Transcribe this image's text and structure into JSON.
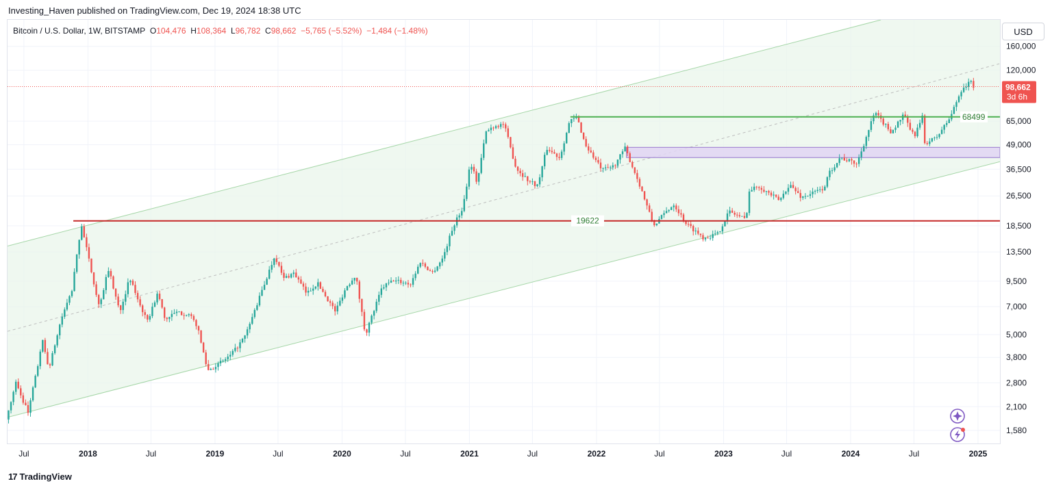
{
  "header": {
    "publisher": "Investing_Haven published on TradingView.com, Dec 19, 2024 18:38 UTC"
  },
  "legend": {
    "symbol": "Bitcoin / U.S. Dollar, 1W, BITSTAMP",
    "open_label": "O",
    "open": "104,476",
    "high_label": "H",
    "high": "108,364",
    "low_label": "L",
    "low": "96,782",
    "close_label": "C",
    "close": "98,662",
    "change": "−5,765 (−5.52%)",
    "change2": "−1,484 (−1.48%)"
  },
  "currency": "USD",
  "footer": {
    "brand": "TradingView",
    "brand_glyph": "17"
  },
  "colors": {
    "up": "#26a69a",
    "down": "#ef5350",
    "channel": "#a5d6a7",
    "support_red": "#c62828",
    "resistance_green": "#4caf50",
    "zone": "#d1c4e9"
  },
  "icons": [
    "sparkle-icon",
    "lightning-icon"
  ],
  "chart_data": {
    "type": "candlestick",
    "symbol": "BTCUSD",
    "interval": "1W",
    "y_scale": "log",
    "ylim": [
      1350,
      220000
    ],
    "xlim": [
      "2017-05-15",
      "2025-03-05"
    ],
    "y_ticks": [
      "160,000",
      "120,000",
      "65,000",
      "49,000",
      "36,500",
      "26,500",
      "18,500",
      "13,500",
      "9,500",
      "7,000",
      "5,000",
      "3,800",
      "2,800",
      "2,100",
      "1,580"
    ],
    "y_tick_values": [
      160000,
      120000,
      65000,
      49000,
      36500,
      26500,
      18500,
      13500,
      9500,
      7000,
      5000,
      3800,
      2800,
      2100,
      1580
    ],
    "x_ticks": [
      {
        "label": "Jul",
        "date": "2017-07-01",
        "year": false
      },
      {
        "label": "2018",
        "date": "2018-01-01",
        "year": true
      },
      {
        "label": "Jul",
        "date": "2018-07-01",
        "year": false
      },
      {
        "label": "2019",
        "date": "2019-01-01",
        "year": true
      },
      {
        "label": "Jul",
        "date": "2019-07-01",
        "year": false
      },
      {
        "label": "2020",
        "date": "2020-01-01",
        "year": true
      },
      {
        "label": "Jul",
        "date": "2020-07-01",
        "year": false
      },
      {
        "label": "2021",
        "date": "2021-01-01",
        "year": true
      },
      {
        "label": "Jul",
        "date": "2021-07-01",
        "year": false
      },
      {
        "label": "2022",
        "date": "2022-01-01",
        "year": true
      },
      {
        "label": "Jul",
        "date": "2022-07-01",
        "year": false
      },
      {
        "label": "2023",
        "date": "2023-01-01",
        "year": true
      },
      {
        "label": "Jul",
        "date": "2023-07-01",
        "year": false
      },
      {
        "label": "2024",
        "date": "2024-01-01",
        "year": true
      },
      {
        "label": "Jul",
        "date": "2024-07-01",
        "year": false
      },
      {
        "label": "2025",
        "date": "2025-01-01",
        "year": true
      }
    ],
    "price_path": [
      [
        "2017-05-15",
        1800
      ],
      [
        "2017-06-12",
        2800
      ],
      [
        "2017-07-17",
        1950
      ],
      [
        "2017-08-28",
        4600
      ],
      [
        "2017-09-15",
        3300
      ],
      [
        "2017-10-20",
        6000
      ],
      [
        "2017-11-20",
        8500
      ],
      [
        "2017-12-17",
        19000
      ],
      [
        "2018-01-01",
        14000
      ],
      [
        "2018-02-06",
        7000
      ],
      [
        "2018-03-05",
        11000
      ],
      [
        "2018-04-06",
        6600
      ],
      [
        "2018-05-05",
        9800
      ],
      [
        "2018-06-24",
        5800
      ],
      [
        "2018-07-25",
        8300
      ],
      [
        "2018-08-14",
        6000
      ],
      [
        "2018-09-15",
        6500
      ],
      [
        "2018-10-20",
        6400
      ],
      [
        "2018-11-14",
        5600
      ],
      [
        "2018-12-15",
        3250
      ],
      [
        "2019-01-15",
        3500
      ],
      [
        "2019-02-20",
        3900
      ],
      [
        "2019-04-02",
        4900
      ],
      [
        "2019-05-15",
        8000
      ],
      [
        "2019-06-26",
        13000
      ],
      [
        "2019-07-20",
        9800
      ],
      [
        "2019-08-20",
        10500
      ],
      [
        "2019-09-25",
        8200
      ],
      [
        "2019-10-26",
        9300
      ],
      [
        "2019-12-17",
        6600
      ],
      [
        "2020-01-15",
        8700
      ],
      [
        "2020-02-13",
        10300
      ],
      [
        "2020-03-12",
        5000
      ],
      [
        "2020-04-29",
        8800
      ],
      [
        "2020-06-01",
        9600
      ],
      [
        "2020-07-20",
        9200
      ],
      [
        "2020-08-17",
        12000
      ],
      [
        "2020-09-20",
        10500
      ],
      [
        "2020-10-20",
        12500
      ],
      [
        "2020-11-20",
        18500
      ],
      [
        "2020-12-17",
        23000
      ],
      [
        "2021-01-08",
        40000
      ],
      [
        "2021-01-27",
        31000
      ],
      [
        "2021-02-21",
        57000
      ],
      [
        "2021-03-13",
        61000
      ],
      [
        "2021-04-14",
        63000
      ],
      [
        "2021-05-19",
        37000
      ],
      [
        "2021-06-22",
        32000
      ],
      [
        "2021-07-20",
        30000
      ],
      [
        "2021-08-15",
        47000
      ],
      [
        "2021-09-21",
        42000
      ],
      [
        "2021-10-20",
        65000
      ],
      [
        "2021-11-10",
        68000
      ],
      [
        "2021-12-04",
        49000
      ],
      [
        "2022-01-22",
        36000
      ],
      [
        "2022-02-24",
        38000
      ],
      [
        "2022-03-28",
        47000
      ],
      [
        "2022-05-10",
        30000
      ],
      [
        "2022-06-18",
        18500
      ],
      [
        "2022-07-25",
        22000
      ],
      [
        "2022-08-15",
        24000
      ],
      [
        "2022-09-20",
        19000
      ],
      [
        "2022-11-09",
        16000
      ],
      [
        "2022-12-20",
        16800
      ],
      [
        "2023-01-20",
        22000
      ],
      [
        "2023-03-10",
        20000
      ],
      [
        "2023-03-20",
        28000
      ],
      [
        "2023-04-14",
        30000
      ],
      [
        "2023-06-15",
        25000
      ],
      [
        "2023-07-13",
        30500
      ],
      [
        "2023-08-17",
        26000
      ],
      [
        "2023-10-20",
        29000
      ],
      [
        "2023-11-05",
        35000
      ],
      [
        "2023-12-05",
        42000
      ],
      [
        "2024-01-23",
        39000
      ],
      [
        "2024-02-28",
        60000
      ],
      [
        "2024-03-14",
        72000
      ],
      [
        "2024-05-01",
        57000
      ],
      [
        "2024-06-05",
        70000
      ],
      [
        "2024-07-05",
        54000
      ],
      [
        "2024-07-29",
        68000
      ],
      [
        "2024-08-05",
        50000
      ],
      [
        "2024-09-06",
        53000
      ],
      [
        "2024-10-15",
        67000
      ],
      [
        "2024-11-11",
        88000
      ],
      [
        "2024-11-22",
        98000
      ],
      [
        "2024-12-05",
        100000
      ],
      [
        "2024-12-16",
        106000
      ],
      [
        "2024-12-19",
        98662
      ]
    ],
    "current_price": {
      "label": "98,662",
      "sublabel": "3d 6h",
      "value": 98662
    },
    "levels": [
      {
        "name": "resistance",
        "label": "68499",
        "value": 68499,
        "from": "2021-10-18",
        "to": "2025-03-05",
        "color": "#4caf50"
      },
      {
        "name": "support",
        "label": "19622",
        "value": 19622,
        "from": "2017-11-20",
        "to": "2025-03-05",
        "color": "#c62828"
      }
    ],
    "zone": {
      "low": 42000,
      "high": 47500,
      "from": "2022-03-28",
      "to": "2025-03-05"
    },
    "channel": {
      "upper": [
        [
          "2017-05-15",
          14500
        ],
        [
          "2024-03-28",
          220000
        ]
      ],
      "lower": [
        [
          "2017-05-15",
          1850
        ],
        [
          "2025-03-05",
          40000
        ]
      ],
      "mid": [
        [
          "2017-05-15",
          5200
        ],
        [
          "2025-03-05",
          130000
        ]
      ]
    }
  }
}
